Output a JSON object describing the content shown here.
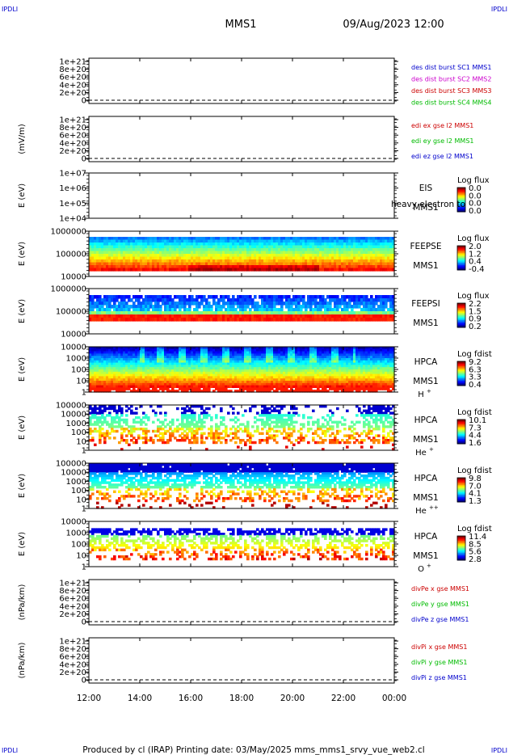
{
  "corner_labels": {
    "tl": "IPDLI",
    "tr": "IPDLI",
    "bl": "IPDLI",
    "br": "IPDLI"
  },
  "header": {
    "title": "MMS1",
    "datetime": "09/Aug/2023 12:00"
  },
  "footer": {
    "text": "Produced by cl (IRAP)   Printing date: 03/May/2025   mms_mms1_srvy_vue_web2.cl"
  },
  "colors": {
    "legend_blue": "#0000cc",
    "legend_magenta": "#cc00cc",
    "legend_red": "#cc0000",
    "legend_green": "#00bb00"
  },
  "chart_data": {
    "type": "heatmap",
    "x_axis": {
      "ticks": [
        "12:00",
        "14:00",
        "16:00",
        "18:00",
        "20:00",
        "22:00",
        "00:00"
      ]
    },
    "panels": [
      {
        "type": "line",
        "ylabel": "",
        "yticks": [
          "1e+21",
          "8e+20",
          "6e+20",
          "4e+20",
          "2e+20",
          "0"
        ],
        "zero_dashed": true,
        "legend": [
          {
            "text": "des dist burst SC1 MMS1",
            "color": "#0000cc"
          },
          {
            "text": "des dist burst SC2 MMS2",
            "color": "#cc00cc"
          },
          {
            "text": "des dist burst SC3 MMS3",
            "color": "#cc0000"
          },
          {
            "text": "des dist burst SC4 MMS4",
            "color": "#00bb00"
          }
        ]
      },
      {
        "type": "line",
        "ylabel": "(mV/m)",
        "yticks": [
          "1e+21",
          "8e+20",
          "6e+20",
          "4e+20",
          "2e+20",
          "0"
        ],
        "zero_dashed": true,
        "legend": [
          {
            "text": "edi ex gse l2 MMS1",
            "color": "#cc0000"
          },
          {
            "text": "edi ey gse l2 MMS1",
            "color": "#00bb00"
          },
          {
            "text": "edi ez gse l2 MMS1",
            "color": "#0000cc"
          }
        ]
      },
      {
        "type": "heatmap",
        "ylabel": "E (eV)",
        "yticks": [
          "1e+07",
          "1e+06",
          "1e+05",
          "1e+04"
        ],
        "side_labels": [
          "EIS",
          "MMS1"
        ],
        "overlay_text": "heavy electron to",
        "colorbar": {
          "title": "Log flux",
          "ticks": [
            "0.0",
            "0.0",
            "0.0",
            "0.0"
          ]
        },
        "description": "no data (empty)"
      },
      {
        "type": "heatmap",
        "ylabel": "E (eV)",
        "yticks": [
          "1000000",
          "100000",
          "10000"
        ],
        "side_labels": [
          "FEEPSE",
          "MMS1"
        ],
        "colorbar": {
          "title": "Log flux",
          "ticks": [
            "2.0",
            "1.2",
            "0.4",
            "-0.4"
          ]
        }
      },
      {
        "type": "heatmap",
        "ylabel": "E (eV)",
        "yticks": [
          "1000000",
          "100000",
          "10000"
        ],
        "side_labels": [
          "FEEPSI",
          "MMS1"
        ],
        "colorbar": {
          "title": "Log flux",
          "ticks": [
            "2.2",
            "1.5",
            "0.9",
            "0.2"
          ]
        }
      },
      {
        "type": "heatmap",
        "ylabel": "E (eV)",
        "yticks": [
          "10000",
          "1000",
          "100",
          "10",
          "1"
        ],
        "side_labels": [
          "HPCA",
          "MMS1"
        ],
        "species": "H",
        "species_sup": "+",
        "colorbar": {
          "title": "Log fdist",
          "ticks": [
            "9.2",
            "6.3",
            "3.3",
            "0.4"
          ]
        }
      },
      {
        "type": "heatmap",
        "ylabel": "E (eV)",
        "yticks": [
          "100000",
          "10000",
          "1000",
          "100",
          "10",
          "1"
        ],
        "side_labels": [
          "HPCA",
          "MMS1"
        ],
        "species": "He",
        "species_sup": "+",
        "colorbar": {
          "title": "Log fdist",
          "ticks": [
            "10.1",
            "7.3",
            "4.4",
            "1.6"
          ]
        }
      },
      {
        "type": "heatmap",
        "ylabel": "E (eV)",
        "yticks": [
          "100000",
          "10000",
          "1000",
          "100",
          "10",
          "1"
        ],
        "side_labels": [
          "HPCA",
          "MMS1"
        ],
        "species": "He",
        "species_sup": "++",
        "colorbar": {
          "title": "Log fdist",
          "ticks": [
            "9.8",
            "7.0",
            "4.1",
            "1.3"
          ]
        }
      },
      {
        "type": "heatmap",
        "ylabel": "E (eV)",
        "yticks": [
          "10000",
          "1000",
          "100",
          "10",
          "1"
        ],
        "side_labels": [
          "HPCA",
          "MMS1"
        ],
        "species": "O",
        "species_sup": "+",
        "colorbar": {
          "title": "Log fdist",
          "ticks": [
            "11.4",
            "8.5",
            "5.6",
            "2.8"
          ]
        }
      },
      {
        "type": "line",
        "ylabel": "(nPa/km)",
        "yticks": [
          "1e+21",
          "8e+20",
          "6e+20",
          "4e+20",
          "2e+20",
          "0"
        ],
        "zero_dashed": true,
        "legend": [
          {
            "text": "divPe x gse MMS1",
            "color": "#cc0000"
          },
          {
            "text": "divPe y gse MMS1",
            "color": "#00bb00"
          },
          {
            "text": "divPe z gse MMS1",
            "color": "#0000cc"
          }
        ]
      },
      {
        "type": "line",
        "ylabel": "(nPa/km)",
        "yticks": [
          "1e+21",
          "8e+20",
          "6e+20",
          "4e+20",
          "2e+20",
          "0"
        ],
        "zero_dashed": true,
        "legend": [
          {
            "text": "divPi x gse MMS1",
            "color": "#cc0000"
          },
          {
            "text": "divPi y gse MMS1",
            "color": "#00bb00"
          },
          {
            "text": "divPi z gse MMS1",
            "color": "#0000cc"
          }
        ]
      }
    ]
  }
}
